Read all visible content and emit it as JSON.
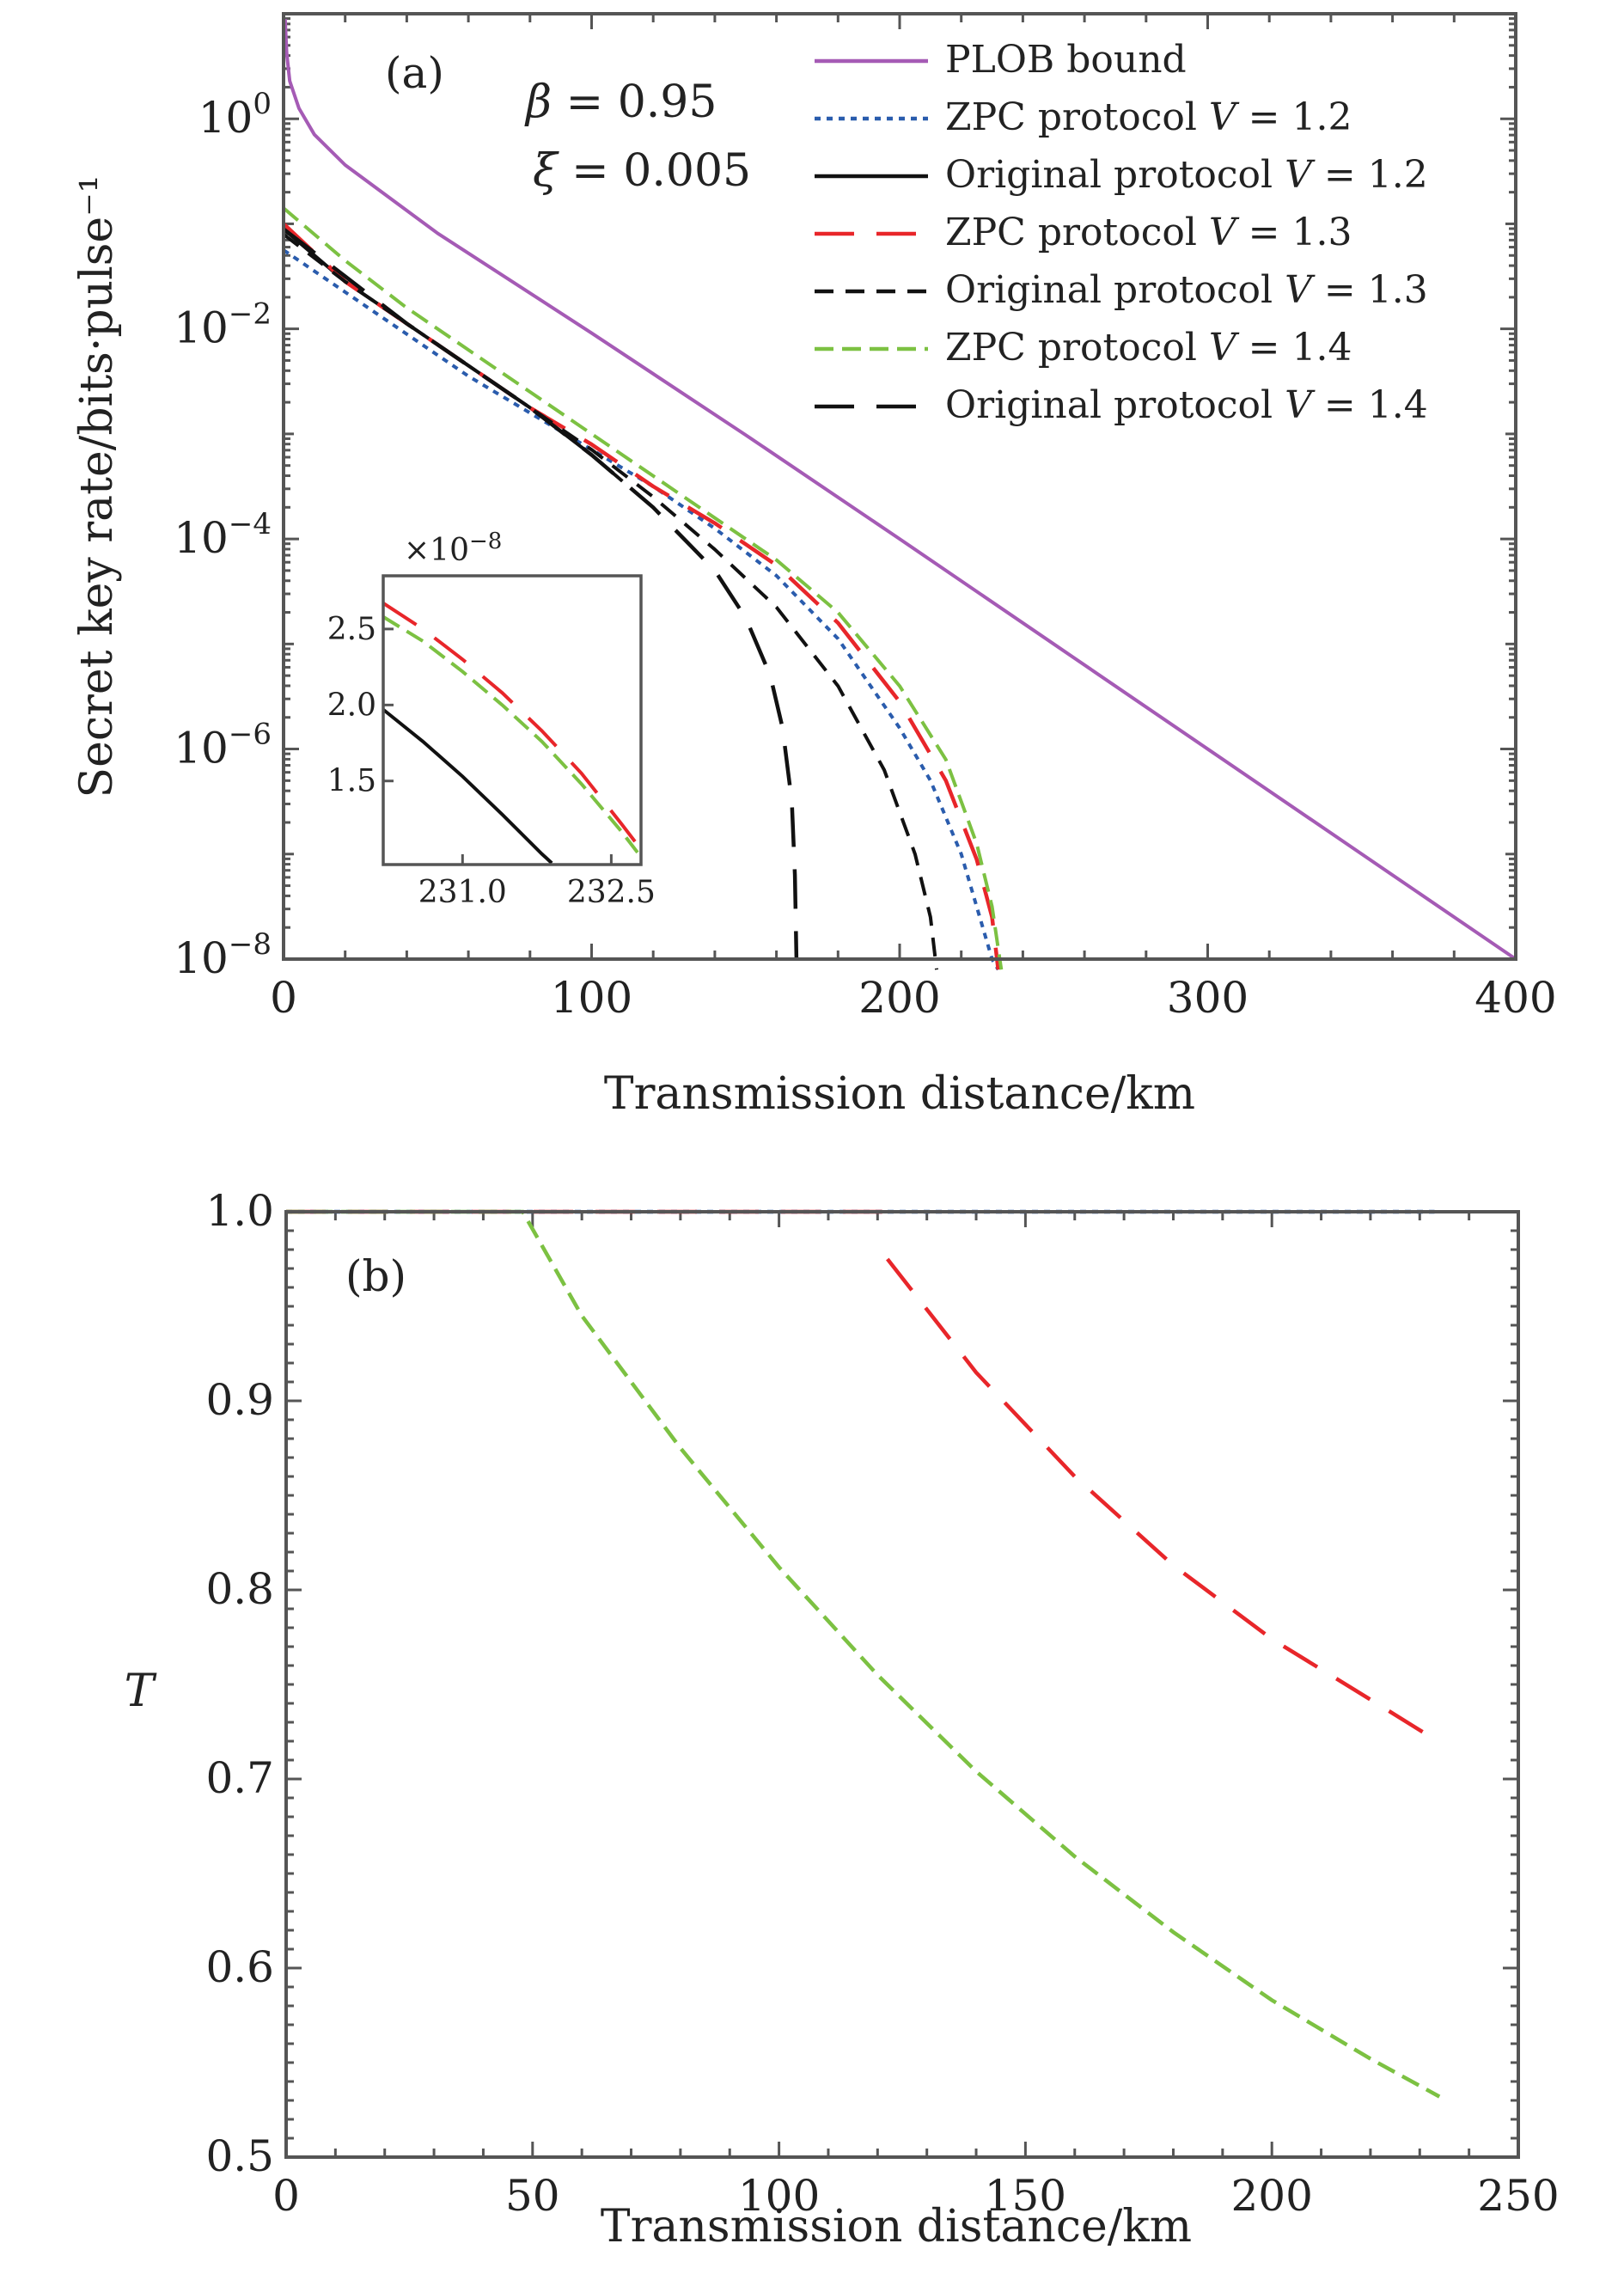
{
  "chart_data": [
    {
      "type": "line",
      "panel_label": "(a)",
      "xlabel": "Transmission distance/km",
      "ylabel": "Secret key rate/bits·pulse⁻¹",
      "yscale": "log",
      "xlim": [
        0,
        400
      ],
      "ylim_log10": [
        -8,
        1
      ],
      "x_ticks": [
        0,
        100,
        200,
        300,
        400
      ],
      "x_tick_labels": [
        "0",
        "100",
        "200",
        "300",
        "400"
      ],
      "y_ticks_log10": [
        0,
        -2,
        -4,
        -6,
        -8
      ],
      "y_tick_labels": [
        {
          "base": "10",
          "exp": "0"
        },
        {
          "base": "10",
          "exp": "−2"
        },
        {
          "base": "10",
          "exp": "−4"
        },
        {
          "base": "10",
          "exp": "−6"
        },
        {
          "base": "10",
          "exp": "−8"
        }
      ],
      "annotations": [
        {
          "sym": "β",
          "rest": " = 0.95"
        },
        {
          "sym": "ξ",
          "rest": " = 0.005"
        }
      ],
      "legend_position": "top-right",
      "series": [
        {
          "key": "plob",
          "name": "PLOB bound",
          "legend_label": "PLOB bound",
          "color": "#a55bb5",
          "dash": "solid",
          "x": [
            0.5,
            1,
            2,
            5,
            10,
            20,
            50,
            100,
            150,
            200,
            250,
            300,
            350,
            400
          ],
          "log10y": [
            0.95,
            0.63,
            0.36,
            0.1,
            -0.15,
            -0.44,
            -1.09,
            -2.04,
            -3.01,
            -4.0,
            -5.0,
            -6.0,
            -7.0,
            -8.0
          ]
        },
        {
          "key": "zpc12",
          "name": "ZPC protocol V=1.2",
          "legend_label": "ZPC protocol",
          "legend_var": "V",
          "legend_val": " = 1.2",
          "color": "#2a5cad",
          "dash": "dotted",
          "x": [
            0,
            20,
            40,
            60,
            80,
            100,
            120,
            140,
            160,
            180,
            200,
            210,
            220,
            226,
            230,
            232
          ],
          "log10y": [
            -1.25,
            -1.65,
            -2.05,
            -2.45,
            -2.8,
            -3.15,
            -3.5,
            -3.9,
            -4.35,
            -4.95,
            -5.8,
            -6.3,
            -7.0,
            -7.6,
            -8.0,
            -8.1
          ]
        },
        {
          "key": "orig12",
          "name": "Original protocol V=1.2",
          "legend_label": "Original protocol",
          "legend_var": "V",
          "legend_val": " = 1.2",
          "color": "#111111",
          "dash": "solid",
          "x": [
            0,
            20,
            40,
            60,
            80,
            100,
            110
          ],
          "log10y": [
            -1.05,
            -1.55,
            -1.95,
            -2.35,
            -2.75,
            -3.2,
            -3.45
          ]
        },
        {
          "key": "zpc13",
          "name": "ZPC protocol V=1.3",
          "legend_label": "ZPC protocol",
          "legend_var": "V",
          "legend_val": " = 1.3",
          "color": "#e8262a",
          "dash": "long",
          "x": [
            0,
            20,
            40,
            60,
            80,
            100,
            120,
            140,
            160,
            180,
            200,
            215,
            225,
            230,
            232
          ],
          "log10y": [
            -1.0,
            -1.55,
            -1.95,
            -2.35,
            -2.75,
            -3.1,
            -3.5,
            -3.85,
            -4.25,
            -4.8,
            -5.55,
            -6.3,
            -7.05,
            -7.6,
            -8.1
          ]
        },
        {
          "key": "orig13",
          "name": "Original protocol V=1.3",
          "legend_label": "Original protocol",
          "legend_var": "V",
          "legend_val": " = 1.3",
          "color": "#111111",
          "dash": "short",
          "x": [
            0,
            20,
            40,
            60,
            80,
            100,
            120,
            140,
            160,
            180,
            195,
            205,
            210,
            212
          ],
          "log10y": [
            -1.1,
            -1.55,
            -1.95,
            -2.35,
            -2.75,
            -3.15,
            -3.6,
            -4.1,
            -4.65,
            -5.4,
            -6.2,
            -7.0,
            -7.6,
            -8.1
          ]
        },
        {
          "key": "zpc14",
          "name": "ZPC protocol V=1.4",
          "legend_label": "ZPC  protocol",
          "legend_var": "V",
          "legend_val": " = 1.4",
          "color": "#7cc142",
          "dash": "medium",
          "x": [
            0,
            20,
            40,
            60,
            80,
            100,
            120,
            140,
            160,
            180,
            200,
            215,
            225,
            230,
            233
          ],
          "log10y": [
            -0.85,
            -1.35,
            -1.8,
            -2.2,
            -2.6,
            -3.0,
            -3.4,
            -3.8,
            -4.2,
            -4.7,
            -5.4,
            -6.1,
            -6.9,
            -7.5,
            -8.1
          ]
        },
        {
          "key": "orig14",
          "name": "Original protocol V=1.4",
          "legend_label": "Original protocol",
          "legend_var": "V",
          "legend_val": " = 1.4",
          "color": "#111111",
          "dash": "long",
          "x": [
            0,
            20,
            40,
            60,
            80,
            100,
            120,
            140,
            150,
            158,
            162,
            165,
            166,
            166.5
          ],
          "log10y": [
            -1.05,
            -1.5,
            -1.95,
            -2.35,
            -2.75,
            -3.2,
            -3.7,
            -4.3,
            -4.75,
            -5.3,
            -5.8,
            -6.5,
            -7.2,
            -8.0
          ]
        }
      ],
      "inset": {
        "xlim": [
          230.2,
          232.8
        ],
        "ylim": [
          0.95,
          2.85
        ],
        "x_ticks": [
          231.0,
          232.5
        ],
        "x_tick_labels": [
          "231.0",
          "232.5"
        ],
        "y_ticks": [
          1.5,
          2.0,
          2.5
        ],
        "y_tick_labels": [
          "1.5",
          "2.0",
          "2.5"
        ],
        "multiplier": {
          "base": "×10",
          "exp": "−8"
        },
        "series": [
          {
            "color": "#e8262a",
            "dash": "long",
            "x": [
              230.2,
              230.6,
              231.0,
              231.4,
              231.8,
              232.2,
              232.6,
              232.8
            ],
            "y": [
              2.67,
              2.5,
              2.3,
              2.08,
              1.83,
              1.55,
              1.22,
              1.05
            ]
          },
          {
            "color": "#7cc142",
            "dash": "medium",
            "x": [
              230.2,
              230.6,
              231.0,
              231.4,
              231.8,
              232.2,
              232.6,
              232.8
            ],
            "y": [
              2.58,
              2.42,
              2.22,
              2.0,
              1.76,
              1.48,
              1.17,
              1.0
            ]
          },
          {
            "color": "#111111",
            "dash": "solid",
            "x": [
              230.2,
              230.6,
              231.0,
              231.4,
              231.8,
              231.9
            ],
            "y": [
              1.97,
              1.76,
              1.53,
              1.28,
              1.02,
              0.96
            ]
          }
        ]
      }
    },
    {
      "type": "line",
      "panel_label": "(b)",
      "xlabel": "Transmission distance/km",
      "ylabel": "T",
      "xlim": [
        0,
        250
      ],
      "ylim": [
        0.5,
        1.0
      ],
      "x_ticks": [
        0,
        50,
        100,
        150,
        200,
        250
      ],
      "x_tick_labels": [
        "0",
        "50",
        "100",
        "150",
        "200",
        "250"
      ],
      "y_ticks": [
        0.5,
        0.6,
        0.7,
        0.8,
        0.9,
        1.0
      ],
      "y_tick_labels": [
        "0.5",
        "0.6",
        "0.7",
        "0.8",
        "0.9",
        "1.0"
      ],
      "series": [
        {
          "key": "zpc12",
          "name": "ZPC protocol V=1.2",
          "color": "#2a5cad",
          "dash": "dotted",
          "x": [
            0,
            233
          ],
          "y": [
            1.0,
            1.0
          ]
        },
        {
          "key": "zpc13",
          "name": "ZPC protocol V=1.3",
          "color": "#e8262a",
          "dash": "long",
          "x": [
            0,
            122,
            122,
            140,
            160,
            180,
            200,
            220,
            233
          ],
          "y": [
            1.0,
            1.0,
            0.975,
            0.915,
            0.86,
            0.813,
            0.774,
            0.742,
            0.721
          ]
        },
        {
          "key": "zpc14",
          "name": "ZPC protocol V=1.4",
          "color": "#7cc142",
          "dash": "medium",
          "x": [
            0,
            48,
            60,
            80,
            100,
            120,
            140,
            160,
            180,
            200,
            220,
            234
          ],
          "y": [
            1.0,
            1.0,
            0.945,
            0.875,
            0.812,
            0.755,
            0.704,
            0.659,
            0.619,
            0.583,
            0.552,
            0.532
          ]
        }
      ]
    }
  ]
}
